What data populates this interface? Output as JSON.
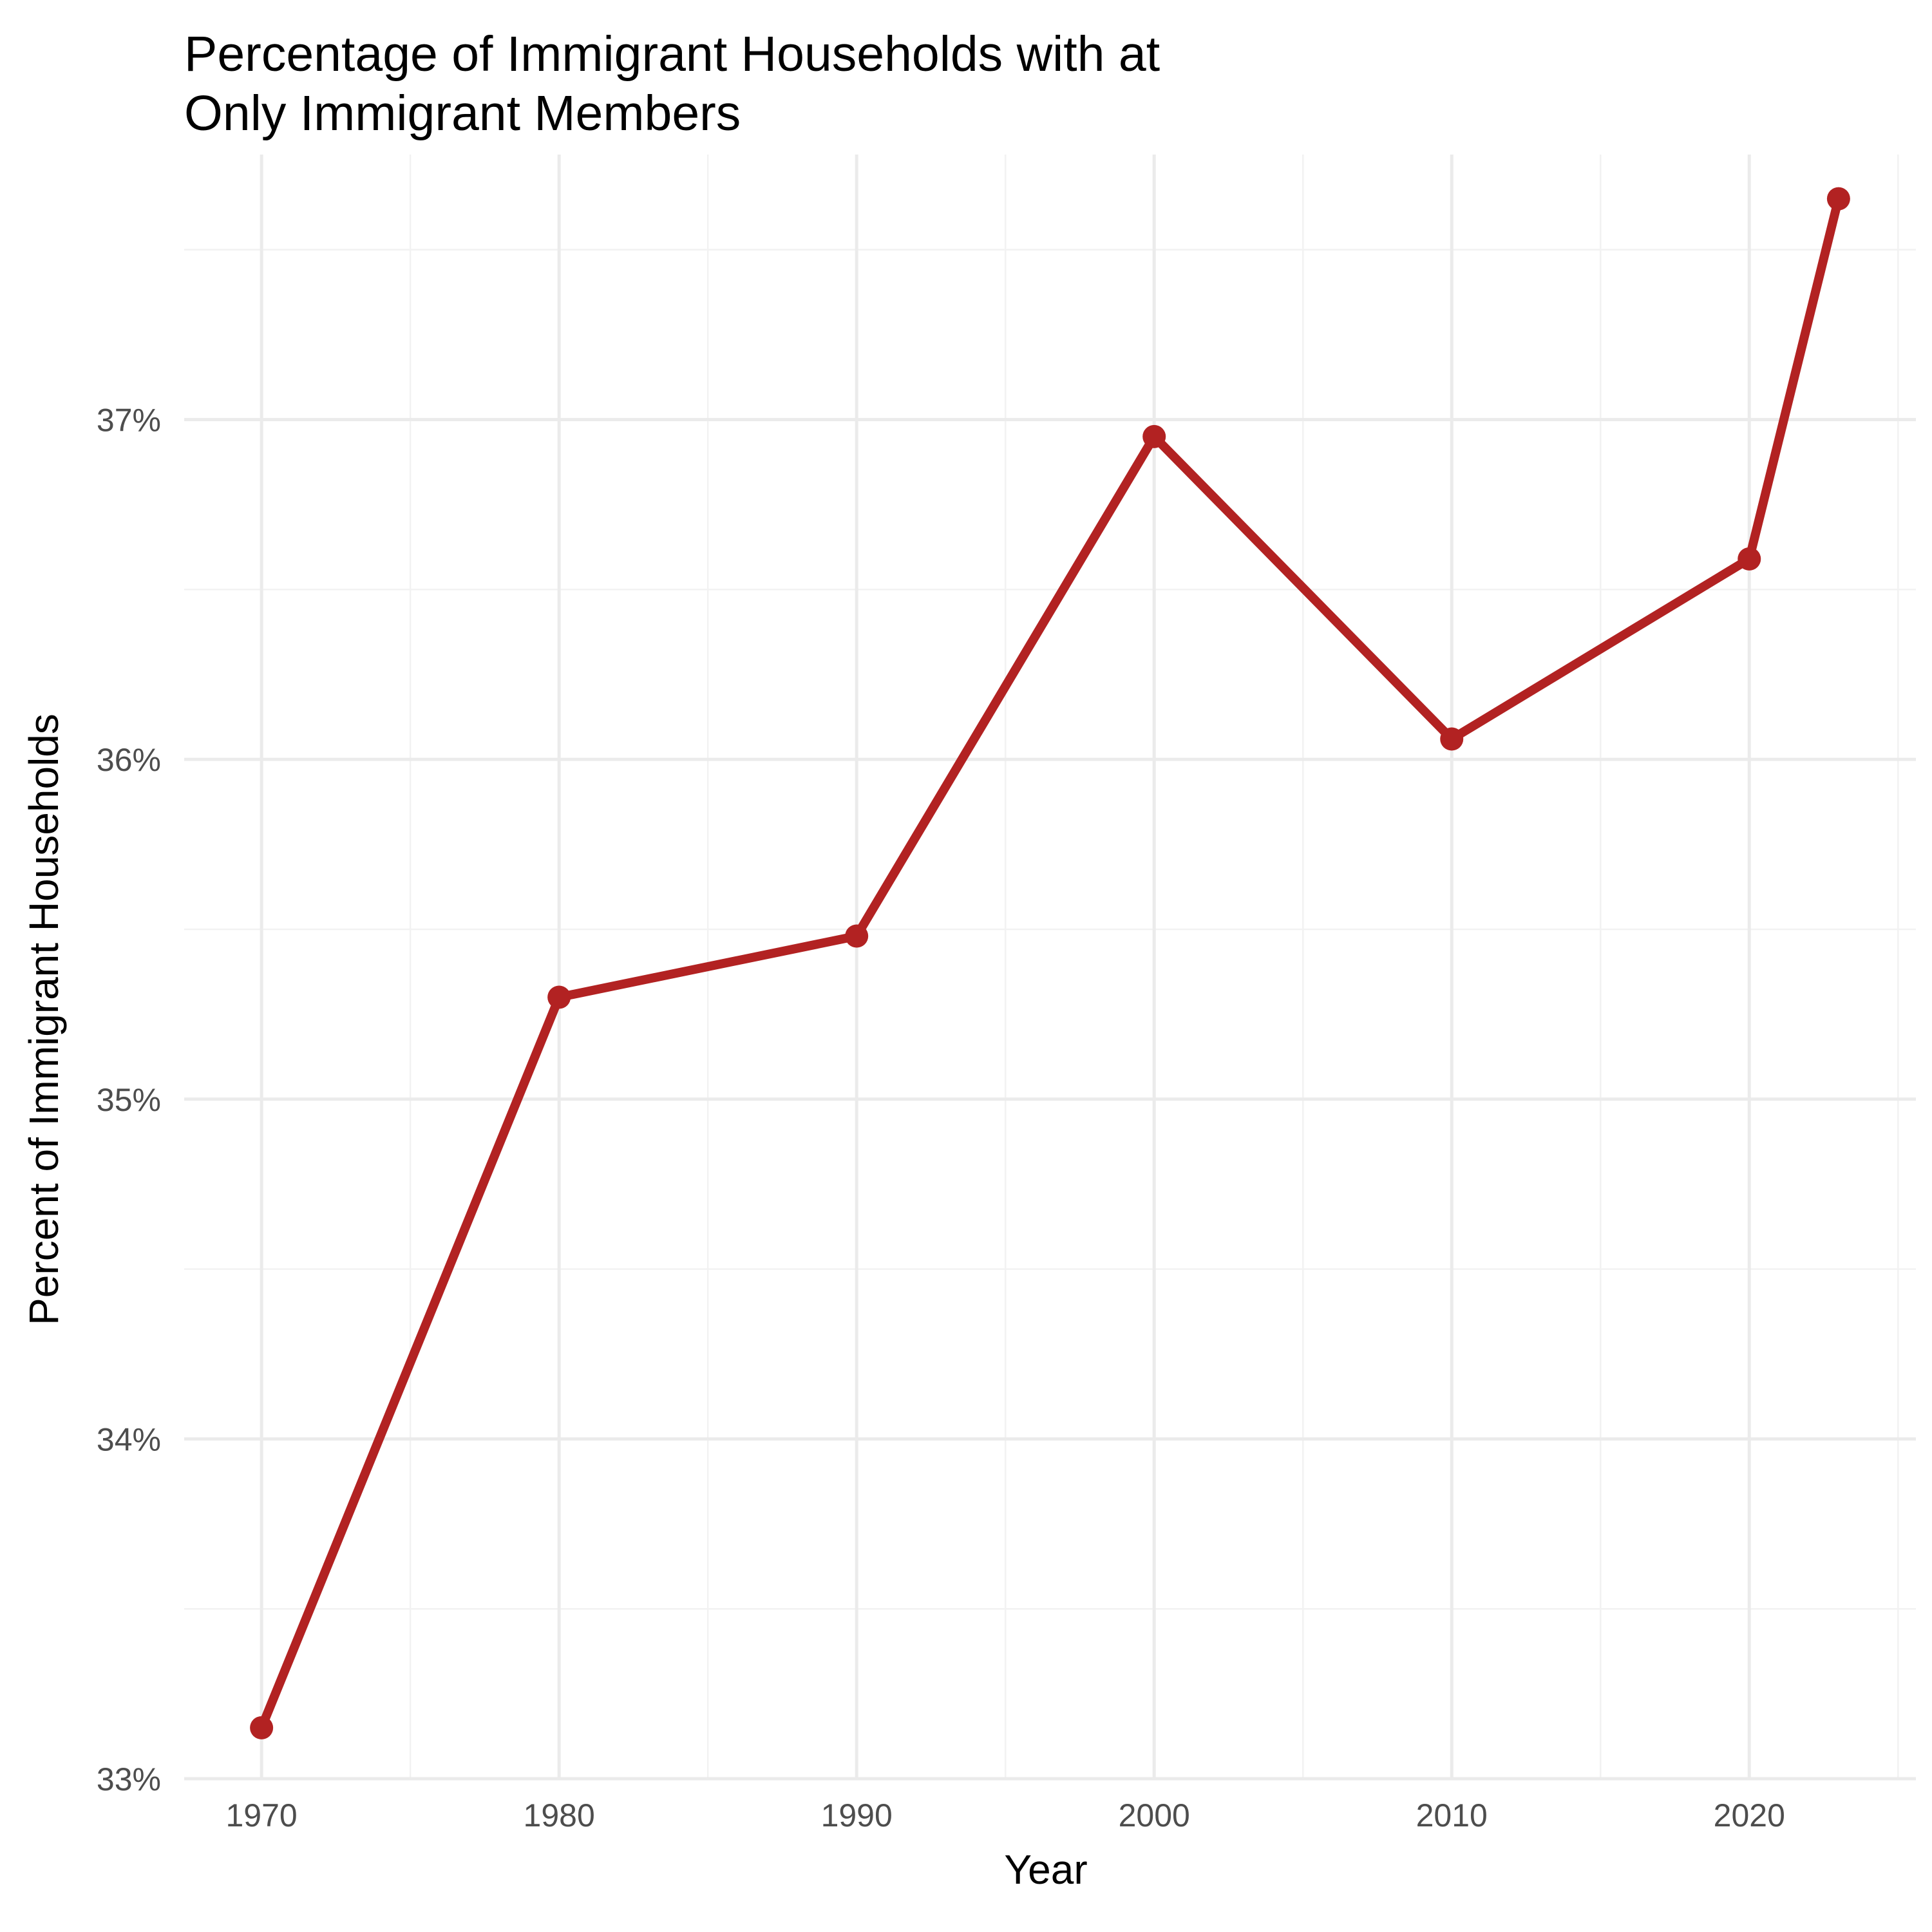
{
  "chart_data": {
    "type": "line",
    "title": "Percentage of Immigrant Households with at\nOnly Immigrant Members",
    "xlabel": "Year",
    "ylabel": "Percent of Immigrant Households",
    "x": [
      1970,
      1980,
      1990,
      2000,
      2010,
      2020,
      2023
    ],
    "series": [
      {
        "values": [
          33.15,
          35.3,
          35.48,
          36.95,
          36.06,
          36.59,
          37.65
        ]
      }
    ],
    "xlim": [
      1967.4,
      2025.6
    ],
    "ylim": [
      33.0,
      37.78
    ],
    "x_ticks": [
      1970,
      1980,
      1990,
      2000,
      2010,
      2020
    ],
    "x_tick_labels": [
      "1970",
      "1980",
      "1990",
      "2000",
      "2010",
      "2020"
    ],
    "x_minor_ticks": [
      1975,
      1985,
      1995,
      2005,
      2015,
      2025
    ],
    "y_ticks": [
      33,
      34,
      35,
      36,
      37
    ],
    "y_tick_labels": [
      "33%",
      "34%",
      "35%",
      "36%",
      "37%"
    ],
    "y_minor_ticks": [
      33.5,
      34.5,
      35.5,
      36.5,
      37.5
    ],
    "grid": true,
    "legend": "none",
    "colors": {
      "line": "#B22222",
      "grid_major": "#EBEBEB",
      "grid_minor": "#F2F2F2",
      "tick_text": "#4D4D4D"
    }
  }
}
